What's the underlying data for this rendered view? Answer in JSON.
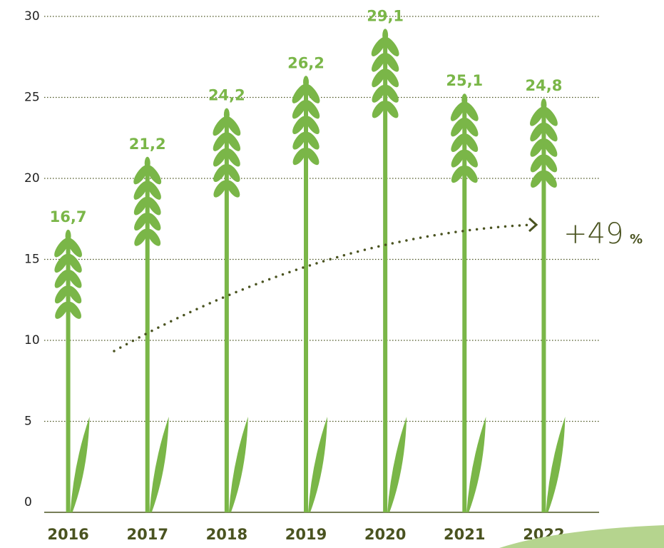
{
  "chart_data": {
    "type": "bar",
    "categories": [
      "2016",
      "2017",
      "2018",
      "2019",
      "2020",
      "2021",
      "2022"
    ],
    "values": [
      16.7,
      21.2,
      24.2,
      26.2,
      29.1,
      25.1,
      24.8
    ],
    "value_labels": [
      "16,7",
      "21,2",
      "24,2",
      "26,2",
      "29,1",
      "25,1",
      "24,8"
    ],
    "color": "#7ab648",
    "ylim": [
      0,
      30
    ],
    "yticks": [
      0,
      5,
      10,
      15,
      20,
      25,
      30
    ],
    "grid": true,
    "annotation": {
      "text": "+49",
      "unit": "%"
    }
  }
}
